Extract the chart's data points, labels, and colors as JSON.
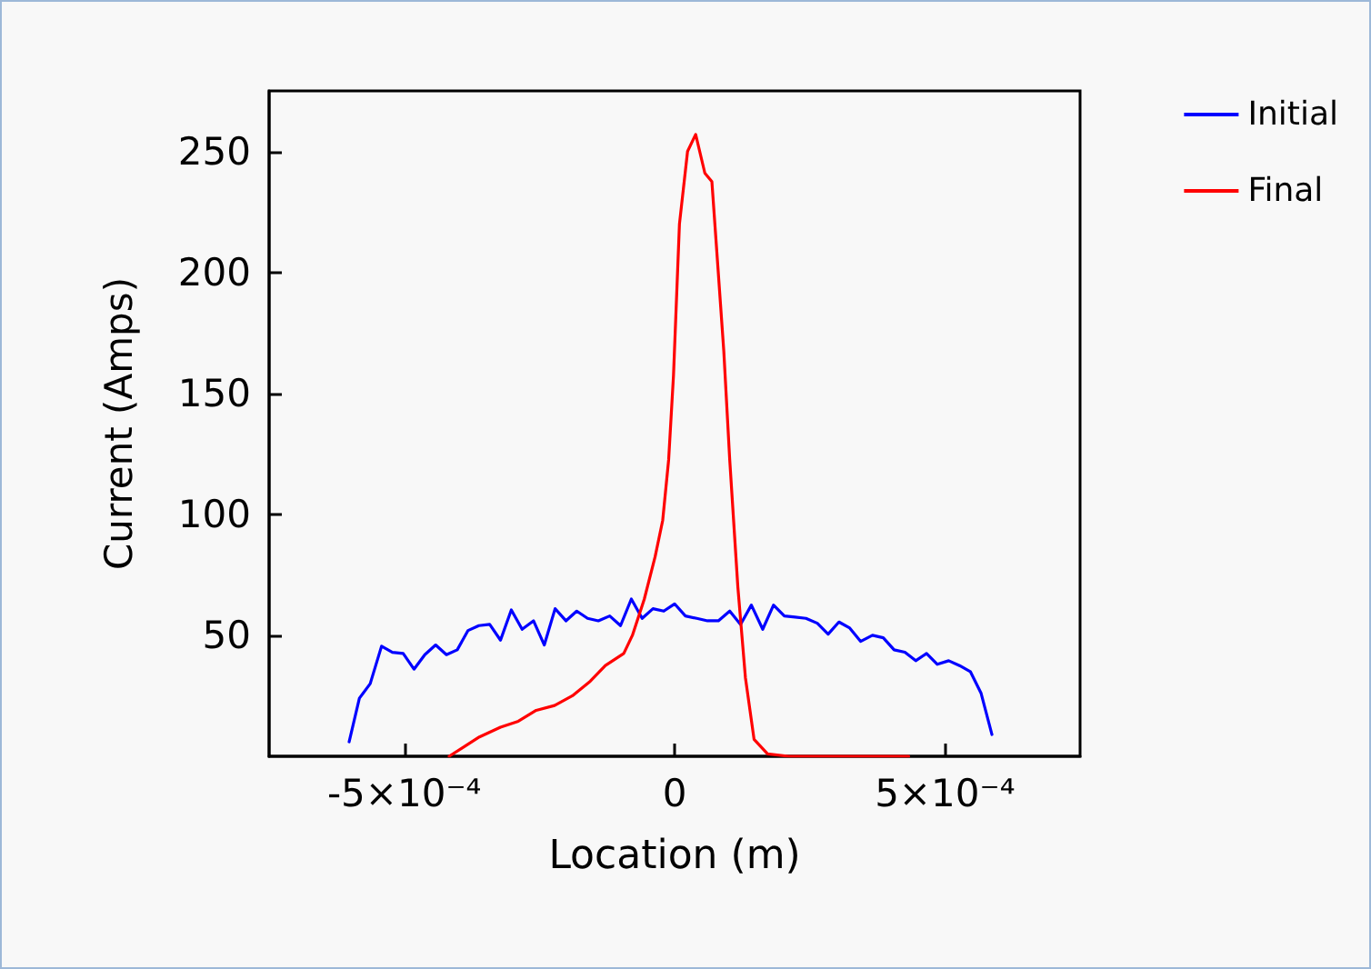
{
  "chart_data": {
    "type": "line",
    "xlabel": "Location (m)",
    "ylabel": "Current (Amps)",
    "xlim": [
      -0.00075,
      0.00075
    ],
    "xticks": [
      {
        "value": -0.0005,
        "label": "-5×10⁻⁴"
      },
      0,
      {
        "value": 0.0005,
        "label": "5×10⁻⁴"
      }
    ],
    "ylim": [
      0,
      275
    ],
    "yticks": [
      50,
      100,
      150,
      200,
      250
    ],
    "grid": false,
    "legend": "top right",
    "marker": "none",
    "line_style": "solid",
    "series": [
      {
        "name": "Initial",
        "color": "#0000ff",
        "x": [
          -0.000602,
          -0.000583,
          -0.000563,
          -0.000542,
          -0.000522,
          -0.000502,
          -0.000482,
          -0.000462,
          -0.000442,
          -0.000422,
          -0.000402,
          -0.000382,
          -0.000362,
          -0.000342,
          -0.000322,
          -0.000302,
          -0.000282,
          -0.000261,
          -0.000241,
          -0.000221,
          -0.000201,
          -0.000181,
          -0.000161,
          -0.000141,
          -0.00012,
          -0.0001,
          -8e-05,
          -6e-05,
          -4e-05,
          -2e-05,
          0,
          2e-05,
          4.1e-05,
          6.1e-05,
          8.1e-05,
          0.000102,
          0.000122,
          0.000142,
          0.000163,
          0.000183,
          0.000203,
          0.000223,
          0.000243,
          0.000264,
          0.000284,
          0.000304,
          0.000324,
          0.000344,
          0.000366,
          0.000386,
          0.000406,
          0.000426,
          0.000446,
          0.000466,
          0.000486,
          0.000507,
          0.000527,
          0.000547,
          0.000567,
          0.000587
        ],
        "values": [
          6,
          24,
          30,
          45.5,
          43,
          42.5,
          36,
          42,
          46,
          42,
          44,
          52,
          54,
          54.5,
          48,
          60.5,
          52.5,
          56,
          46,
          61,
          56,
          60,
          57,
          56,
          58,
          54,
          65,
          57,
          61,
          60,
          63,
          58,
          57,
          56,
          56,
          60,
          54.5,
          62.5,
          52.5,
          62.5,
          58,
          57.5,
          57,
          55,
          50.5,
          55.5,
          53,
          47.5,
          50,
          49,
          44,
          43,
          39.5,
          42.5,
          38,
          39.5,
          37.5,
          35,
          26,
          9
        ]
      },
      {
        "name": "Final",
        "color": "#ff0000",
        "x": [
          -0.000417,
          -0.000389,
          -0.000361,
          -0.000322,
          -0.000289,
          -0.000256,
          -0.000222,
          -0.000189,
          -0.000156,
          -0.000128,
          -9.4e-05,
          -7.8e-05,
          -5.6e-05,
          -3.6e-05,
          -2.2e-05,
          -1.1e-05,
          -2e-06,
          9e-06,
          2.4e-05,
          3.9e-05,
          5.6e-05,
          6.9e-05,
          8e-05,
          9.1e-05,
          0.000102,
          0.000117,
          0.000131,
          0.000147,
          0.000172,
          0.000211,
          0.000433
        ],
        "values": [
          0,
          4,
          8,
          12,
          14.5,
          19,
          21,
          25,
          31,
          37.5,
          42.5,
          50,
          65,
          82.5,
          97.5,
          122.5,
          157.5,
          220,
          250,
          257,
          241,
          237.5,
          202.5,
          167.5,
          122.5,
          70,
          32.5,
          7,
          1,
          0,
          0
        ]
      }
    ]
  }
}
